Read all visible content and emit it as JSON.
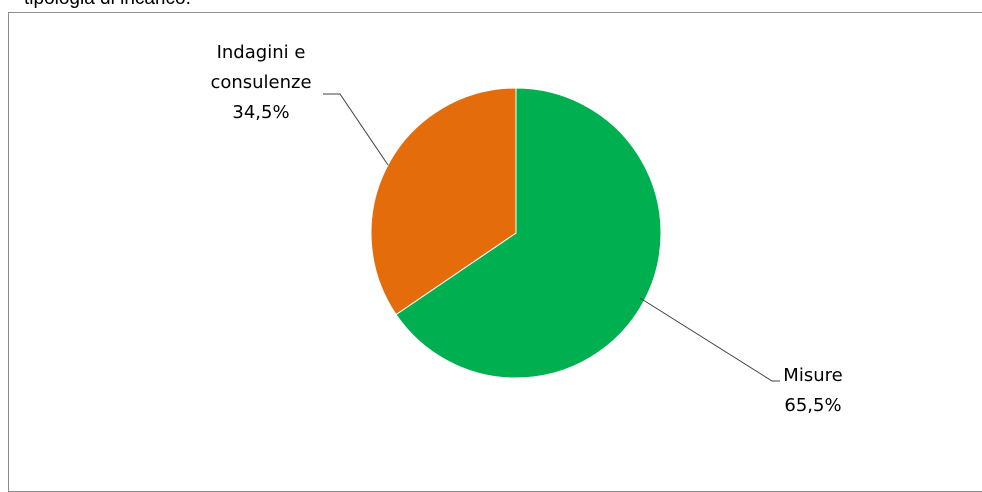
{
  "caption": "tipologia di incarico.",
  "chart_data": {
    "type": "pie",
    "start_angle": 0,
    "direction": "clockwise",
    "slices": [
      {
        "label_lines": [
          "Misure",
          "65,5%"
        ],
        "category": "Misure",
        "percent_text": "65,5%",
        "value": 65.5,
        "color": "#00b050"
      },
      {
        "label_lines": [
          "Indagini e",
          "consulenze",
          "34,5%"
        ],
        "category": "Indagini e consulenze",
        "percent_text": "34,5%",
        "value": 34.5,
        "color": "#e46c0a"
      }
    ],
    "leader_color": "#404040"
  }
}
